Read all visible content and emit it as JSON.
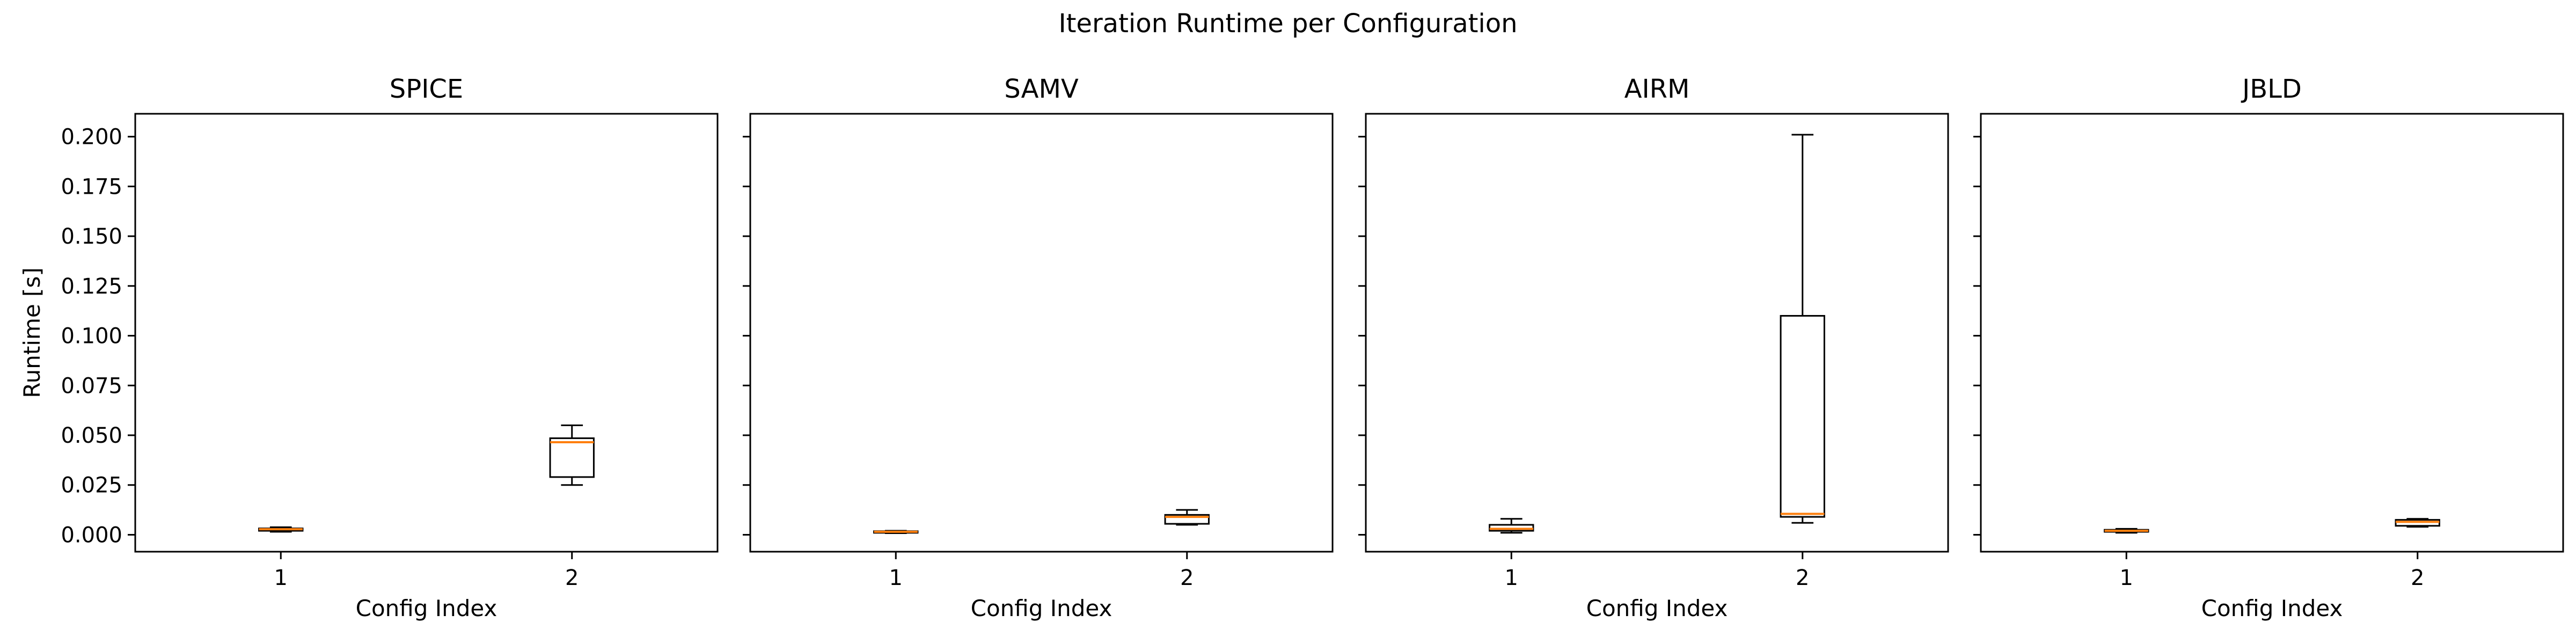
{
  "figure_title": "Iteration Runtime per Configuration",
  "colors": {
    "median": "#ff7f0e",
    "box": "#000000",
    "background": "#ffffff"
  },
  "chart_data": [
    {
      "type": "box",
      "title": "SPICE",
      "xlabel": "Config Index",
      "ylabel": "Runtime [s]",
      "categories": [
        "1",
        "2"
      ],
      "ylim": [
        -0.0085,
        0.2115
      ],
      "yticks": [
        0.0,
        0.025,
        0.05,
        0.075,
        0.1,
        0.125,
        0.15,
        0.175,
        0.2
      ],
      "ytick_labels": [
        "0.000",
        "0.025",
        "0.050",
        "0.075",
        "0.100",
        "0.125",
        "0.150",
        "0.175",
        "0.200"
      ],
      "boxes": [
        {
          "whisker_low": 0.0015,
          "q1": 0.002,
          "median": 0.0028,
          "q3": 0.0032,
          "whisker_high": 0.0038
        },
        {
          "whisker_low": 0.025,
          "q1": 0.029,
          "median": 0.0465,
          "q3": 0.0485,
          "whisker_high": 0.055
        }
      ]
    },
    {
      "type": "box",
      "title": "SAMV",
      "xlabel": "Config Index",
      "ylabel": "",
      "categories": [
        "1",
        "2"
      ],
      "ylim": [
        -0.0085,
        0.2115
      ],
      "yticks": [
        0.0,
        0.025,
        0.05,
        0.075,
        0.1,
        0.125,
        0.15,
        0.175,
        0.2
      ],
      "ytick_labels": [],
      "boxes": [
        {
          "whisker_low": 0.0008,
          "q1": 0.001,
          "median": 0.0015,
          "q3": 0.0018,
          "whisker_high": 0.002
        },
        {
          "whisker_low": 0.005,
          "q1": 0.0055,
          "median": 0.009,
          "q3": 0.01,
          "whisker_high": 0.0125
        }
      ]
    },
    {
      "type": "box",
      "title": "AIRM",
      "xlabel": "Config Index",
      "ylabel": "",
      "categories": [
        "1",
        "2"
      ],
      "ylim": [
        -0.0085,
        0.2115
      ],
      "yticks": [
        0.0,
        0.025,
        0.05,
        0.075,
        0.1,
        0.125,
        0.15,
        0.175,
        0.2
      ],
      "ytick_labels": [],
      "boxes": [
        {
          "whisker_low": 0.001,
          "q1": 0.002,
          "median": 0.003,
          "q3": 0.005,
          "whisker_high": 0.008
        },
        {
          "whisker_low": 0.006,
          "q1": 0.009,
          "median": 0.0105,
          "q3": 0.11,
          "whisker_high": 0.201
        }
      ]
    },
    {
      "type": "box",
      "title": "JBLD",
      "xlabel": "Config Index",
      "ylabel": "",
      "categories": [
        "1",
        "2"
      ],
      "ylim": [
        -0.0085,
        0.2115
      ],
      "yticks": [
        0.0,
        0.025,
        0.05,
        0.075,
        0.1,
        0.125,
        0.15,
        0.175,
        0.2
      ],
      "ytick_labels": [],
      "boxes": [
        {
          "whisker_low": 0.001,
          "q1": 0.0015,
          "median": 0.002,
          "q3": 0.0025,
          "whisker_high": 0.003
        },
        {
          "whisker_low": 0.004,
          "q1": 0.0045,
          "median": 0.0065,
          "q3": 0.0075,
          "whisker_high": 0.008
        }
      ]
    }
  ]
}
